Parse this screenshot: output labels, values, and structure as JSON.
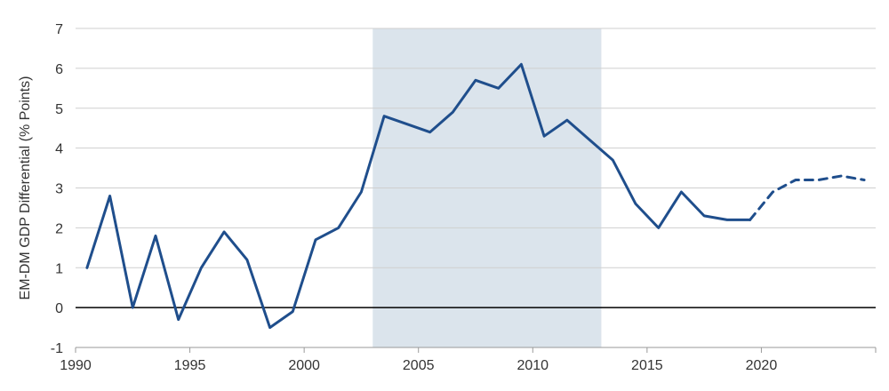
{
  "chart_data": {
    "type": "line",
    "title": "",
    "xlabel": "",
    "ylabel": "EM-DM GDP Differential (% Points)",
    "xlim": [
      1990,
      2025
    ],
    "ylim": [
      -1,
      7
    ],
    "x_ticks": [
      1990,
      1995,
      2000,
      2005,
      2010,
      2015,
      2020
    ],
    "y_ticks": [
      -1,
      0,
      1,
      2,
      3,
      4,
      5,
      6,
      7
    ],
    "grid": "horizontal",
    "legend": "none",
    "colors": {
      "line": "#1f4e8c",
      "shade": "#dbe4ec",
      "zero_line": "#000000",
      "grid": "#cfcfcf"
    },
    "shaded_region": {
      "x_start": 2003,
      "x_end": 2013
    },
    "series": [
      {
        "style": "solid",
        "x": [
          1990.5,
          1991.5,
          1992.5,
          1993.5,
          1994.5,
          1995.5,
          1996.5,
          1997.5,
          1998.5,
          1999.5,
          2000.5,
          2001.5,
          2002.5,
          2003.5,
          2004.5,
          2005.5,
          2006.5,
          2007.5,
          2008.5,
          2009.5,
          2010.5,
          2011.5,
          2012.5,
          2013.5,
          2014.5,
          2015.5,
          2016.5,
          2017.5,
          2018.5,
          2019.5
        ],
        "values": [
          1.0,
          2.8,
          0.0,
          1.8,
          -0.3,
          1.0,
          1.9,
          1.2,
          -0.5,
          -0.1,
          1.7,
          2.0,
          2.9,
          4.8,
          4.6,
          4.4,
          4.9,
          5.7,
          5.5,
          6.1,
          4.3,
          4.7,
          4.2,
          3.7,
          2.6,
          2.0,
          2.9,
          2.3,
          2.2,
          2.2
        ]
      },
      {
        "style": "dashed",
        "x": [
          2019.5,
          2020.5,
          2021.5,
          2022.5,
          2023.5,
          2024.5
        ],
        "values": [
          2.2,
          2.9,
          3.2,
          3.2,
          3.3,
          3.2
        ]
      }
    ]
  }
}
